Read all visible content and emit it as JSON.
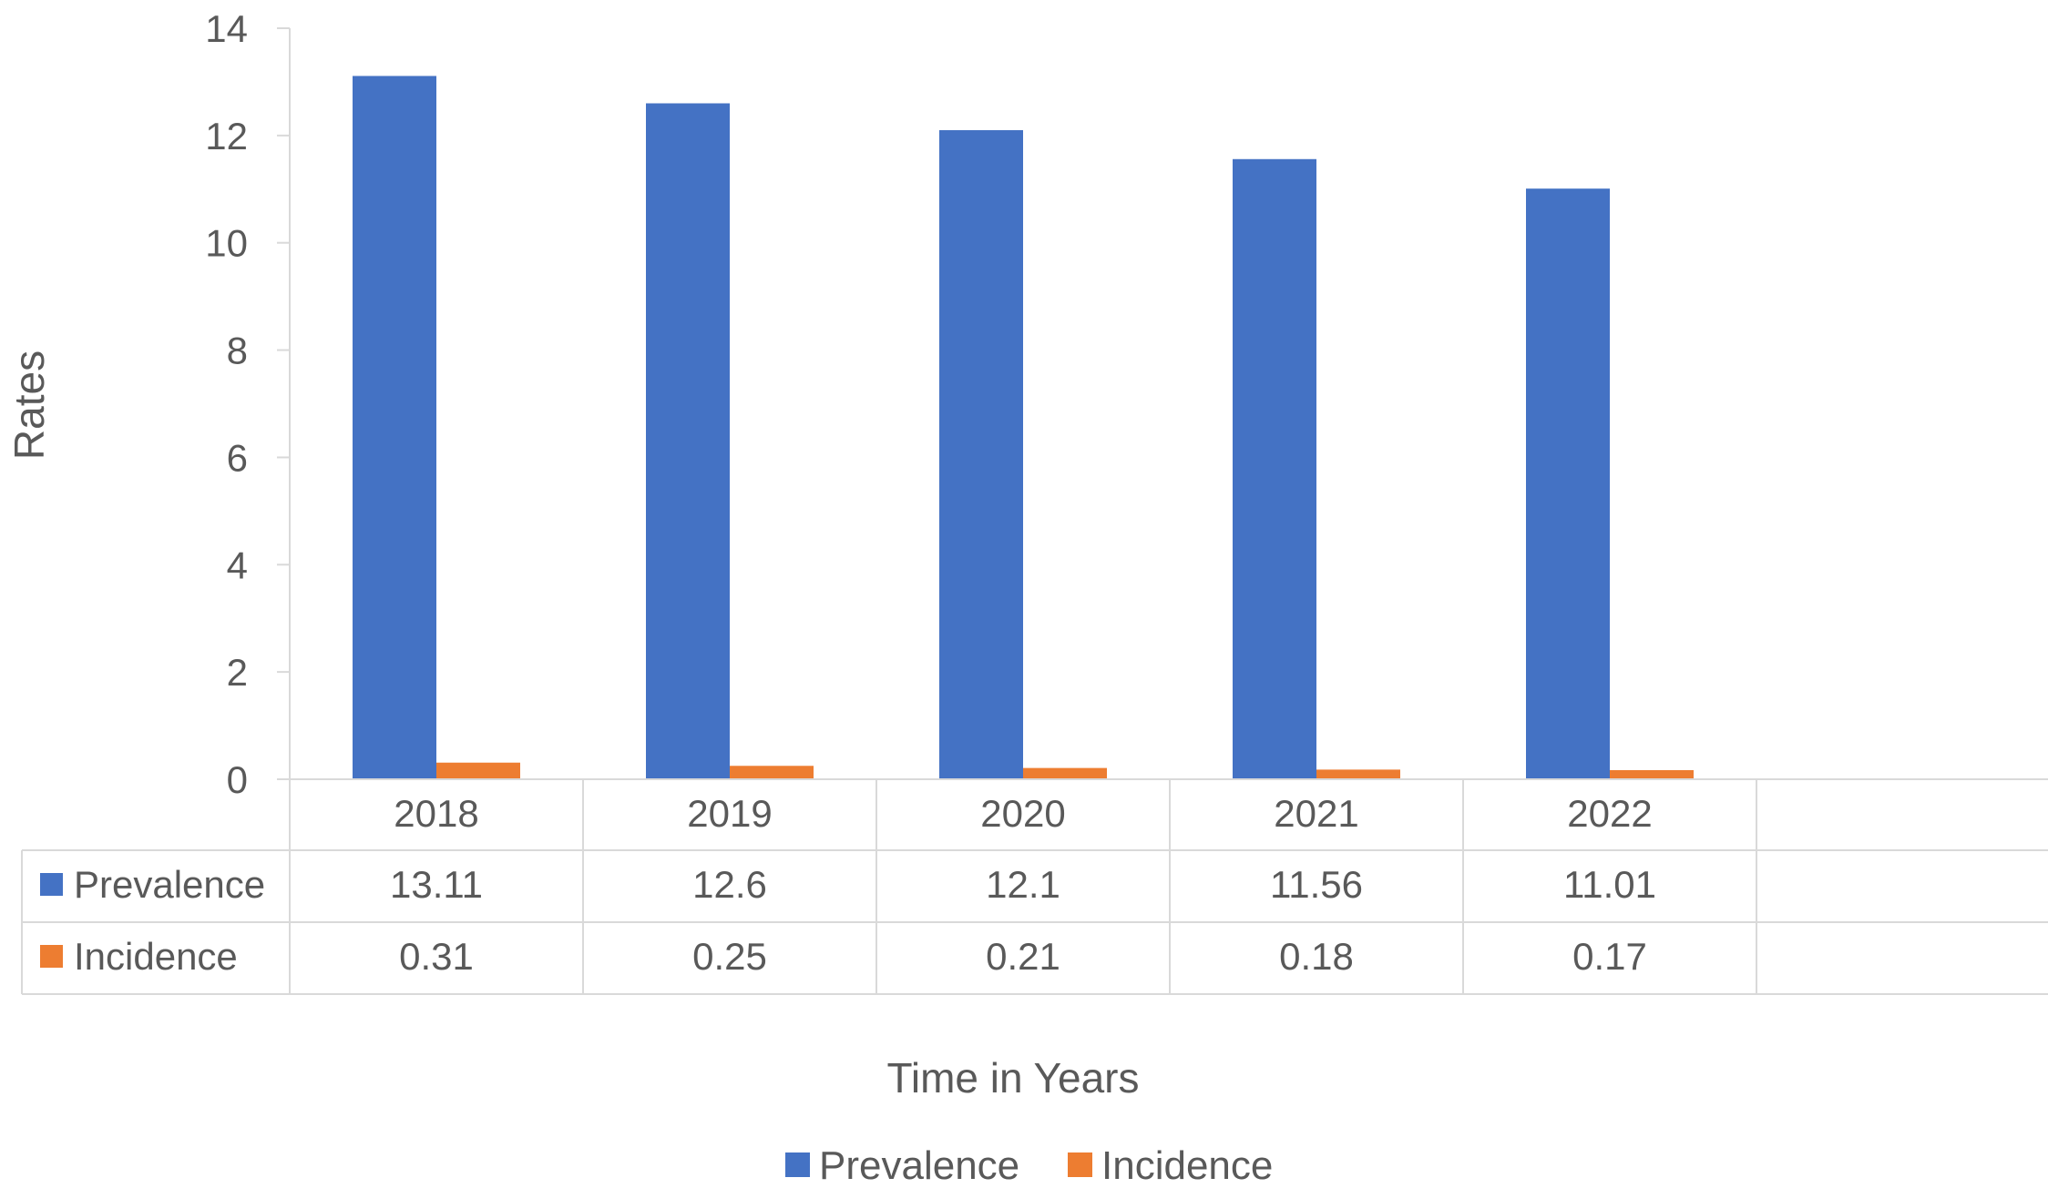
{
  "chart_data": {
    "type": "bar",
    "categories": [
      "2018",
      "2019",
      "2020",
      "2021",
      "2022"
    ],
    "series": [
      {
        "name": "Prevalence",
        "color": "#4472C4",
        "values": [
          13.11,
          12.6,
          12.1,
          11.56,
          11.01
        ],
        "labels": [
          "13.11",
          "12.6",
          "12.1",
          "11.56",
          "11.01"
        ]
      },
      {
        "name": "Incidence",
        "color": "#ED7D31",
        "values": [
          0.31,
          0.25,
          0.21,
          0.18,
          0.17
        ],
        "labels": [
          "0.31",
          "0.25",
          "0.21",
          "0.18",
          "0.17"
        ]
      }
    ],
    "xlabel": "Time in Years",
    "ylabel": "Rates",
    "ylim": [
      0,
      14
    ],
    "yticks": [
      0,
      2,
      4,
      6,
      8,
      10,
      12,
      14
    ],
    "grid": false,
    "legend_position": "bottom",
    "data_table": true
  }
}
